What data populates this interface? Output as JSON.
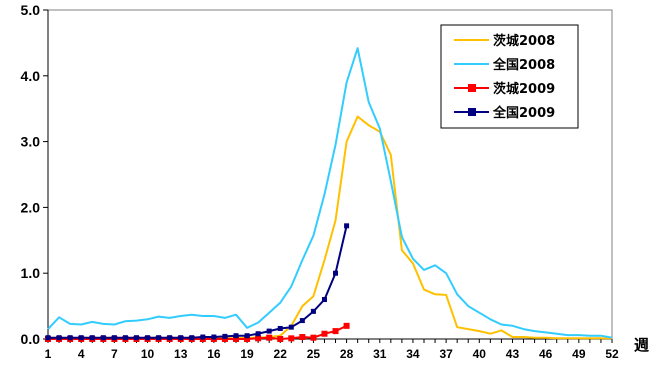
{
  "chart_data": {
    "type": "line",
    "xlabel": "週",
    "ylabel": "",
    "title": "",
    "xlim": [
      1,
      52
    ],
    "ylim": [
      0,
      5
    ],
    "x_ticks": [
      1,
      4,
      7,
      10,
      13,
      16,
      19,
      22,
      25,
      28,
      31,
      34,
      37,
      40,
      43,
      46,
      49,
      52
    ],
    "y_ticks": [
      {
        "value": 0,
        "label": "0.0"
      },
      {
        "value": 1,
        "label": "1.0"
      },
      {
        "value": 2,
        "label": "2.0"
      },
      {
        "value": 3,
        "label": "3.0"
      },
      {
        "value": 4,
        "label": "4.0"
      },
      {
        "value": 5,
        "label": "5.0"
      }
    ],
    "grid": false,
    "legend": "top-right",
    "series": [
      {
        "name": "茨城2008",
        "color": "#ffc000",
        "marker": "none",
        "x": [
          1,
          2,
          3,
          4,
          5,
          6,
          7,
          8,
          9,
          10,
          11,
          12,
          13,
          14,
          15,
          16,
          17,
          18,
          19,
          20,
          21,
          22,
          23,
          24,
          25,
          26,
          27,
          28,
          29,
          30,
          31,
          32,
          33,
          34,
          35,
          36,
          37,
          38,
          39,
          40,
          41,
          42,
          43,
          44,
          45,
          46,
          47,
          48,
          49,
          50,
          51,
          52
        ],
        "y": [
          0.01,
          0.01,
          0.01,
          0.01,
          0.01,
          0.01,
          0.01,
          0.01,
          0.01,
          0.01,
          0.01,
          0.01,
          0.01,
          0.01,
          0.01,
          0.01,
          0.01,
          0.01,
          0.02,
          0.02,
          0.03,
          0.05,
          0.2,
          0.5,
          0.65,
          1.2,
          1.8,
          3.0,
          3.38,
          3.25,
          3.15,
          2.8,
          1.35,
          1.15,
          0.75,
          0.68,
          0.67,
          0.18,
          0.15,
          0.12,
          0.08,
          0.13,
          0.03,
          0.03,
          0.02,
          0.02,
          0.01,
          0.01,
          0.01,
          0.01,
          0.01,
          0.01
        ]
      },
      {
        "name": "全国2008",
        "color": "#33ccff",
        "marker": "none",
        "x": [
          1,
          2,
          3,
          4,
          5,
          6,
          7,
          8,
          9,
          10,
          11,
          12,
          13,
          14,
          15,
          16,
          17,
          18,
          19,
          20,
          21,
          22,
          23,
          24,
          25,
          26,
          27,
          28,
          29,
          30,
          31,
          32,
          33,
          34,
          35,
          36,
          37,
          38,
          39,
          40,
          41,
          42,
          43,
          44,
          45,
          46,
          47,
          48,
          49,
          50,
          51,
          52
        ],
        "y": [
          0.15,
          0.33,
          0.23,
          0.22,
          0.26,
          0.23,
          0.22,
          0.27,
          0.28,
          0.3,
          0.34,
          0.32,
          0.35,
          0.37,
          0.35,
          0.35,
          0.32,
          0.37,
          0.17,
          0.25,
          0.4,
          0.55,
          0.8,
          1.2,
          1.57,
          2.2,
          2.95,
          3.9,
          4.42,
          3.6,
          3.2,
          2.4,
          1.55,
          1.22,
          1.05,
          1.12,
          1.0,
          0.68,
          0.5,
          0.4,
          0.3,
          0.22,
          0.2,
          0.15,
          0.12,
          0.1,
          0.08,
          0.06,
          0.06,
          0.05,
          0.05,
          0.02
        ]
      },
      {
        "name": "茨城2009",
        "color": "#ff0000",
        "marker": "square",
        "x": [
          1,
          2,
          3,
          4,
          5,
          6,
          7,
          8,
          9,
          10,
          11,
          12,
          13,
          14,
          15,
          16,
          17,
          18,
          19,
          20,
          21,
          22,
          23,
          24,
          25,
          26,
          27,
          28
        ],
        "y": [
          0.0,
          0.0,
          0.0,
          0.0,
          0.0,
          0.0,
          0.0,
          0.0,
          0.0,
          0.0,
          0.0,
          0.0,
          0.0,
          0.0,
          0.0,
          0.0,
          0.0,
          0.0,
          0.0,
          0.01,
          0.02,
          0.0,
          0.01,
          0.03,
          0.02,
          0.08,
          0.12,
          0.2
        ]
      },
      {
        "name": "全国2009",
        "color": "#000080",
        "marker": "square",
        "x": [
          1,
          2,
          3,
          4,
          5,
          6,
          7,
          8,
          9,
          10,
          11,
          12,
          13,
          14,
          15,
          16,
          17,
          18,
          19,
          20,
          21,
          22,
          23,
          24,
          25,
          26,
          27,
          28
        ],
        "y": [
          0.02,
          0.02,
          0.02,
          0.02,
          0.02,
          0.02,
          0.02,
          0.02,
          0.02,
          0.02,
          0.02,
          0.02,
          0.02,
          0.02,
          0.03,
          0.03,
          0.04,
          0.05,
          0.05,
          0.08,
          0.12,
          0.16,
          0.18,
          0.28,
          0.42,
          0.6,
          1.0,
          1.72
        ]
      }
    ]
  }
}
